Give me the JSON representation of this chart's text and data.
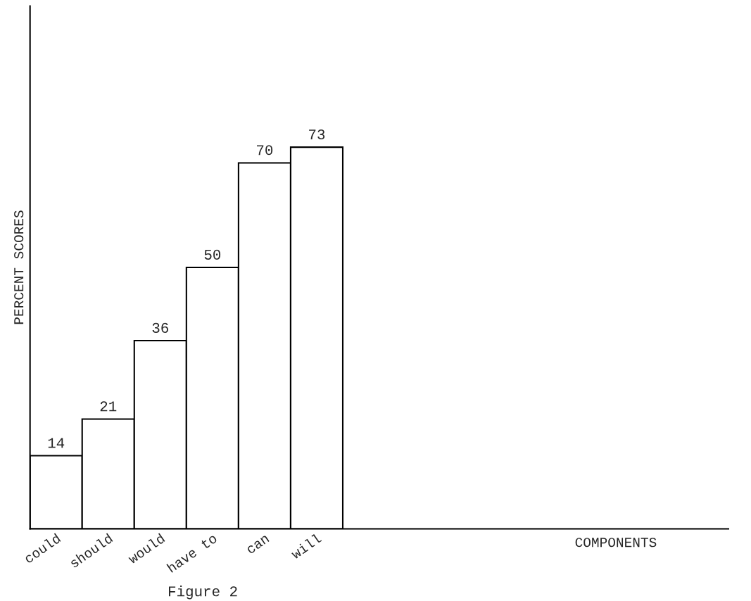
{
  "chart_data": {
    "type": "bar",
    "ylabel": "PERCENT SCORES",
    "categories": [
      "could",
      "should",
      "would",
      "have to",
      "can",
      "will"
    ],
    "values": [
      14,
      21,
      36,
      50,
      70,
      73
    ],
    "color": "#ffffff",
    "data_labels": true,
    "ylim": [
      0,
      100
    ],
    "grid": false,
    "legend": false,
    "annotations": [
      "Figure 2",
      "COMPONENTS"
    ]
  }
}
